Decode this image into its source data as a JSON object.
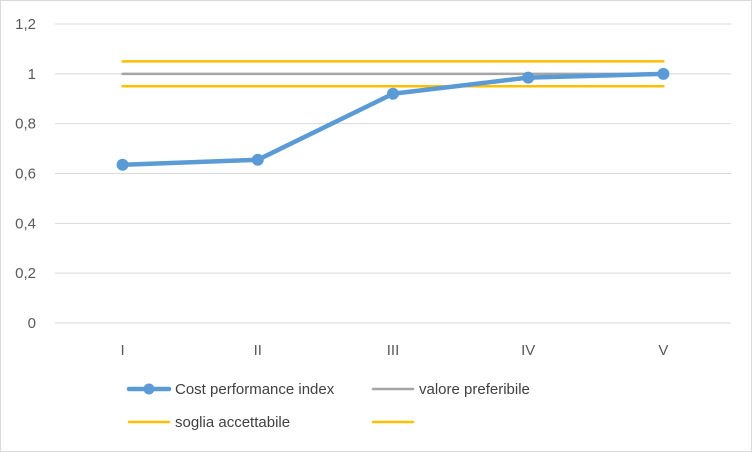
{
  "chart_data": {
    "type": "line",
    "categories": [
      "I",
      "II",
      "III",
      "IV",
      "V"
    ],
    "ylim": [
      0,
      1.2
    ],
    "yticks": [
      "0",
      "0,2",
      "0,4",
      "0,6",
      "0,8",
      "1",
      "1,2"
    ],
    "grid": true,
    "legend_position": "bottom",
    "series": [
      {
        "name": "Cost performance index",
        "values": [
          0.635,
          0.655,
          0.92,
          0.985,
          1.0
        ],
        "color": "#5b9bd5",
        "markers": true
      },
      {
        "name": "valore preferibile",
        "values": [
          1.0,
          1.0,
          1.0,
          1.0,
          1.0
        ],
        "color": "#a5a5a5",
        "markers": false
      },
      {
        "name": "soglia accettabile",
        "values": [
          1.05,
          1.05,
          1.05,
          1.05,
          1.05
        ],
        "color": "#ffc000",
        "markers": false
      },
      {
        "name": "",
        "values": [
          0.95,
          0.95,
          0.95,
          0.95,
          0.95
        ],
        "color": "#ffc000",
        "markers": false
      }
    ]
  }
}
